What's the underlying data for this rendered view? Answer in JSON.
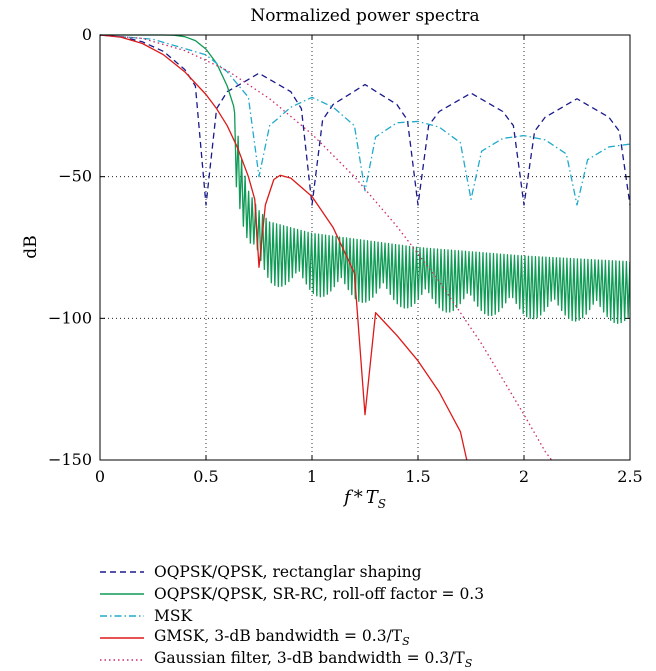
{
  "chart_data": {
    "type": "line",
    "title": "Normalized power spectra",
    "xlabel": "f * T_S",
    "ylabel": "dB",
    "xlim": [
      0,
      2.5
    ],
    "ylim": [
      -150,
      0
    ],
    "xticks": [
      "0",
      "0.5",
      "1",
      "1.5",
      "2",
      "2.5"
    ],
    "yticks": [
      "0",
      "−50",
      "−100",
      "−150"
    ],
    "grid": true,
    "legend_position": "below",
    "series": [
      {
        "name": "OQPSK/QPSK, rectanglar shaping",
        "color": "#1a1a8c",
        "style": "dashed",
        "x": [
          0,
          0.1,
          0.2,
          0.3,
          0.4,
          0.45,
          0.5,
          0.55,
          0.6,
          0.75,
          0.9,
          0.95,
          1.0,
          1.05,
          1.1,
          1.25,
          1.4,
          1.45,
          1.5,
          1.55,
          1.6,
          1.75,
          1.9,
          1.95,
          2.0,
          2.05,
          2.1,
          2.25,
          2.4,
          2.45,
          2.5
        ],
        "values": [
          0,
          -0.6,
          -2.4,
          -5.8,
          -12.2,
          -18.0,
          -60,
          -26.0,
          -20.0,
          -13.5,
          -20.0,
          -26.0,
          -60,
          -30.0,
          -24.5,
          -17.5,
          -24.5,
          -30.0,
          -60,
          -32.0,
          -27.0,
          -20.5,
          -27.0,
          -32.0,
          -60,
          -34.0,
          -29.0,
          -22.5,
          -29.0,
          -34.0,
          -60
        ]
      },
      {
        "name": "OQPSK/QPSK, SR-RC, roll-off factor = 0.3",
        "color": "#0f9a55",
        "style": "solid",
        "x": [
          0,
          0.2,
          0.3,
          0.35,
          0.4,
          0.45,
          0.5,
          0.55,
          0.6,
          0.63,
          0.65,
          0.67,
          0.7,
          0.75,
          0.8,
          1.0,
          1.5,
          2.0,
          2.5
        ],
        "values": [
          0,
          0,
          0,
          -0.1,
          -0.6,
          -2.0,
          -5.0,
          -10.0,
          -18.0,
          -25.0,
          -35.0,
          -45.0,
          -55.0,
          -62.0,
          -66.0,
          -70.0,
          -75.0,
          -78.0,
          -80.0
        ]
      },
      {
        "name": "MSK",
        "color": "#22aacc",
        "style": "dashdot",
        "x": [
          0,
          0.25,
          0.5,
          0.6,
          0.7,
          0.75,
          0.8,
          0.9,
          1.0,
          1.1,
          1.2,
          1.25,
          1.3,
          1.4,
          1.5,
          1.6,
          1.7,
          1.75,
          1.8,
          1.9,
          2.0,
          2.1,
          2.2,
          2.25,
          2.3,
          2.4,
          2.5
        ],
        "values": [
          0,
          -1.5,
          -7.0,
          -13.0,
          -22.0,
          -50,
          -32.0,
          -25.5,
          -22.0,
          -25.5,
          -32.0,
          -55,
          -36.0,
          -31.0,
          -30.5,
          -32.5,
          -38.0,
          -58,
          -41.0,
          -36.5,
          -35.5,
          -37.0,
          -42.0,
          -60,
          -44.0,
          -39.5,
          -38.5
        ]
      },
      {
        "name": "GMSK, 3-dB bandwidth = 0.3/T_S",
        "color": "#dd1a1a",
        "style": "solid",
        "x": [
          0,
          0.1,
          0.2,
          0.3,
          0.4,
          0.5,
          0.55,
          0.6,
          0.65,
          0.7,
          0.73,
          0.75,
          0.78,
          0.82,
          0.85,
          0.9,
          1.0,
          1.1,
          1.2,
          1.25,
          1.3,
          1.35,
          1.4,
          1.5,
          1.6,
          1.7,
          1.73
        ],
        "values": [
          0,
          -0.8,
          -3.0,
          -7.0,
          -13.0,
          -21.0,
          -26.0,
          -32.0,
          -40.0,
          -50.0,
          -58.0,
          -82.0,
          -60.0,
          -51.0,
          -49.5,
          -50.5,
          -57.0,
          -68.0,
          -84.0,
          -134.0,
          -98.0,
          -102.0,
          -106.0,
          -115.0,
          -126.0,
          -140.0,
          -150.0
        ]
      },
      {
        "name": "Gaussian filter, 3-dB bandwidth = 0.3/T_S",
        "color": "#cc2a6a",
        "style": "dotted",
        "x": [
          0,
          0.2,
          0.4,
          0.6,
          0.8,
          1.0,
          1.2,
          1.4,
          1.6,
          1.8,
          2.0,
          2.1,
          2.13
        ],
        "values": [
          0,
          -1.2,
          -5.5,
          -12.5,
          -22.5,
          -35.0,
          -50.0,
          -67.5,
          -87.0,
          -109.0,
          -134.0,
          -147.0,
          -150.0
        ]
      }
    ]
  },
  "legend": [
    {
      "label": "OQPSK/QPSK, rectanglar shaping",
      "sub": ""
    },
    {
      "label": "OQPSK/QPSK, SR-RC, roll-off factor = 0.3",
      "sub": ""
    },
    {
      "label": "MSK",
      "sub": ""
    },
    {
      "label": "GMSK, 3-dB bandwidth = 0.3/T",
      "sub": "S"
    },
    {
      "label": "Gaussian filter, 3-dB bandwidth = 0.3/T",
      "sub": "S"
    }
  ]
}
